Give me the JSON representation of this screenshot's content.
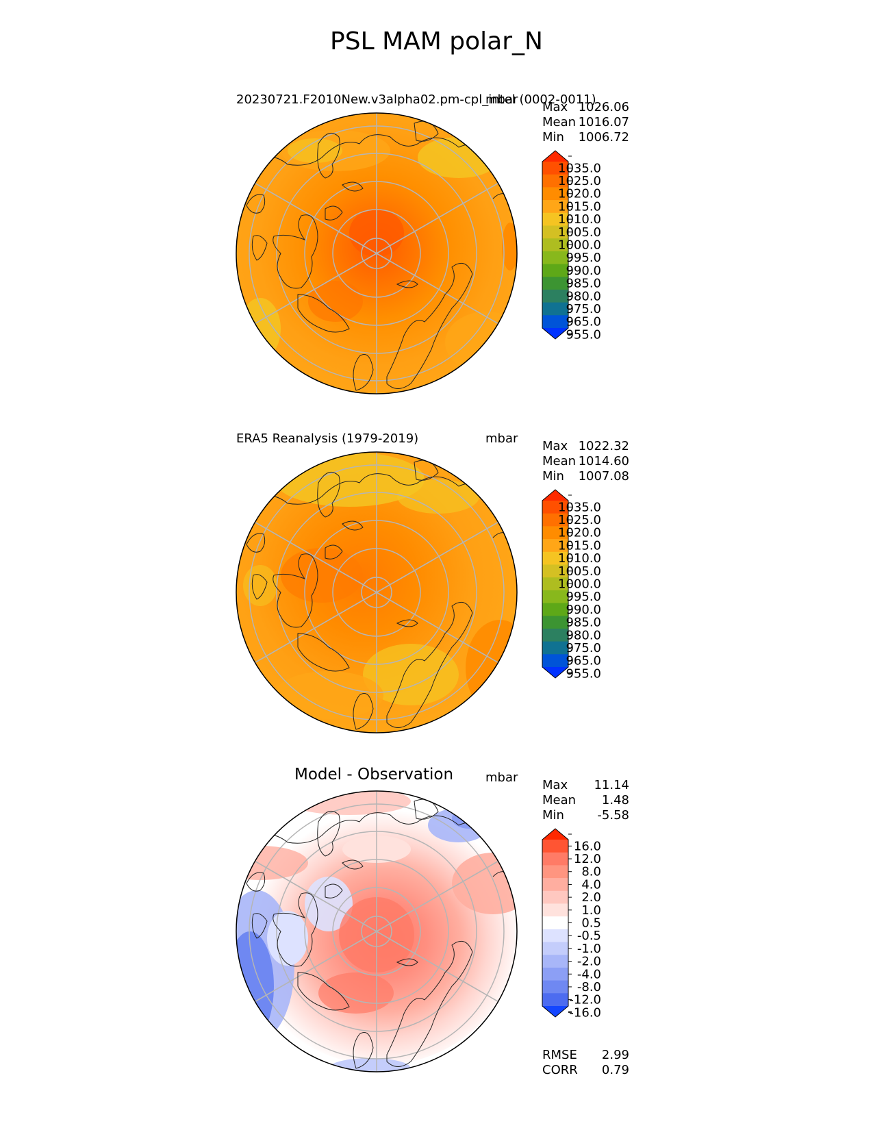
{
  "figure": {
    "title": "PSL MAM polar_N"
  },
  "panels": [
    {
      "id": "test",
      "title": "20230721.F2010New.v3alpha02.pm-cpl_intel (0002-0011)",
      "units": "mbar",
      "stats": [
        {
          "label": "Max",
          "value": "1026.06"
        },
        {
          "label": "Mean",
          "value": "1016.07"
        },
        {
          "label": "Min",
          "value": "1006.72"
        }
      ],
      "colorbar": {
        "labels": [
          "1035.0",
          "1025.0",
          "1020.0",
          "1015.0",
          "1010.0",
          "1005.0",
          "1000.0",
          "995.0",
          "990.0",
          "985.0",
          "980.0",
          "975.0",
          "965.0",
          "955.0"
        ],
        "colors": [
          "#ff2a00",
          "#ff5000",
          "#ff7000",
          "#ff8c00",
          "#ffa617",
          "#f5c422",
          "#d4c023",
          "#aebd20",
          "#88b81c",
          "#5ea818",
          "#3c9432",
          "#2c8060",
          "#107292",
          "#0054d8",
          "#0032ff"
        ]
      }
    },
    {
      "id": "reference",
      "title": "ERA5 Reanalysis (1979-2019)",
      "units": "mbar",
      "stats": [
        {
          "label": "Max",
          "value": "1022.32"
        },
        {
          "label": "Mean",
          "value": "1014.60"
        },
        {
          "label": "Min",
          "value": "1007.08"
        }
      ],
      "colorbar": {
        "labels": [
          "1035.0",
          "1025.0",
          "1020.0",
          "1015.0",
          "1010.0",
          "1005.0",
          "1000.0",
          "995.0",
          "990.0",
          "985.0",
          "980.0",
          "975.0",
          "965.0",
          "955.0"
        ],
        "colors": [
          "#ff2a00",
          "#ff5000",
          "#ff7000",
          "#ff8c00",
          "#ffa617",
          "#f5c422",
          "#d4c023",
          "#aebd20",
          "#88b81c",
          "#5ea818",
          "#3c9432",
          "#2c8060",
          "#107292",
          "#0054d8",
          "#0032ff"
        ]
      }
    },
    {
      "id": "difference",
      "title": "Model - Observation",
      "units": "mbar",
      "stats": [
        {
          "label": "Max",
          "value": "11.14"
        },
        {
          "label": "Mean",
          "value": "1.48"
        },
        {
          "label": "Min",
          "value": "-5.58"
        }
      ],
      "extra_stats": [
        {
          "label": "RMSE",
          "value": "2.99"
        },
        {
          "label": "CORR",
          "value": "0.79"
        }
      ],
      "colorbar": {
        "labels": [
          "16.0",
          "12.0",
          "8.0",
          "4.0",
          "2.0",
          "1.0",
          "0.5",
          "-0.5",
          "-1.0",
          "-2.0",
          "-4.0",
          "-8.0",
          "-12.0",
          "-16.0"
        ],
        "colors": [
          "#ff2800",
          "#ff5533",
          "#ff7b66",
          "#ff9580",
          "#ffaea0",
          "#ffc8c0",
          "#ffe2dd",
          "#ffffff",
          "#dde2ff",
          "#c4cdfb",
          "#a8b6f8",
          "#8c9ff5",
          "#6f88f2",
          "#4d6cf0",
          "#1446ff"
        ]
      }
    }
  ]
}
